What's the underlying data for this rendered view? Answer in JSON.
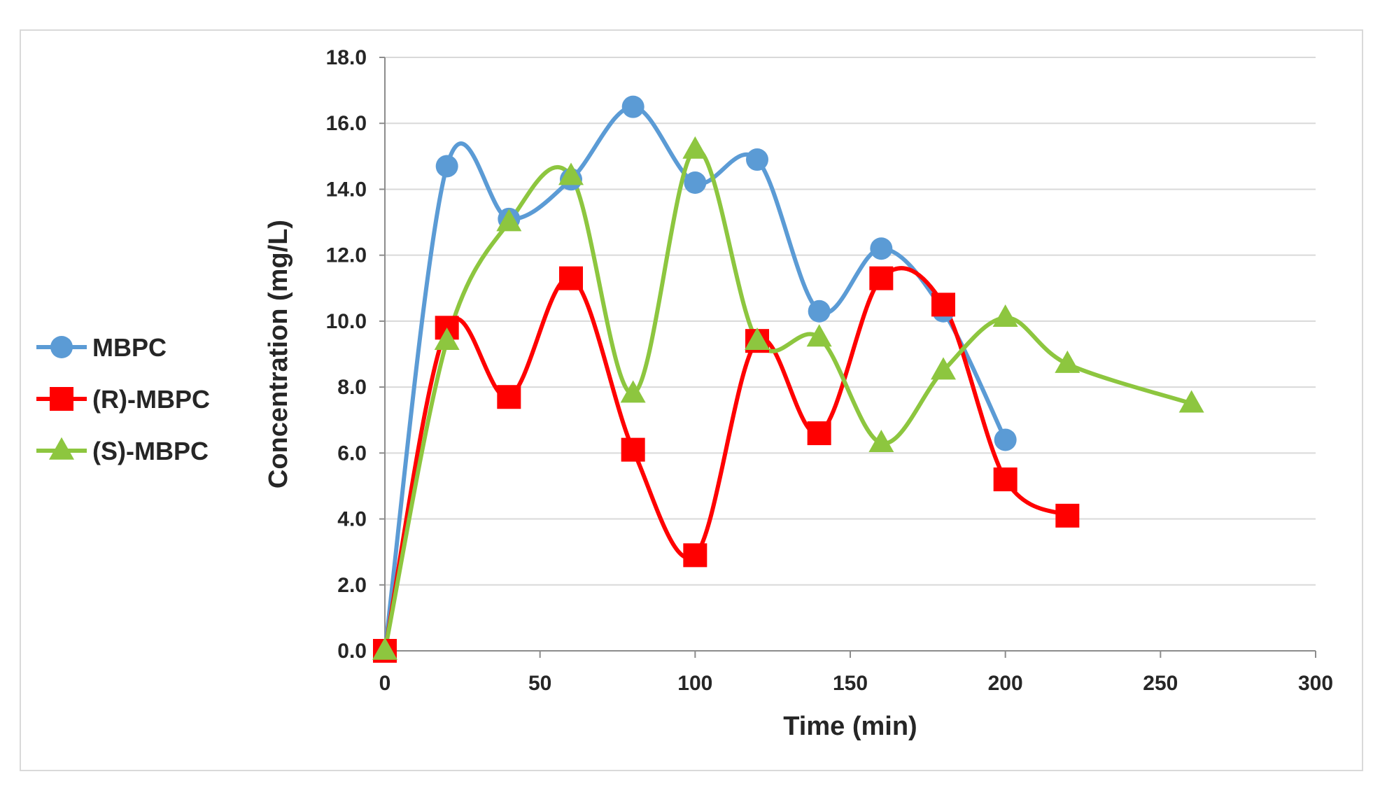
{
  "chart_data": {
    "type": "line",
    "title": "",
    "xlabel": "Time (min)",
    "ylabel": "Concentration (mg/L)",
    "xlim": [
      0,
      300
    ],
    "ylim": [
      0,
      18
    ],
    "xticks": [
      0,
      50,
      100,
      150,
      200,
      250,
      300
    ],
    "yticks": [
      0,
      2,
      4,
      6,
      8,
      10,
      12,
      14,
      16,
      18
    ],
    "xtick_labels": [
      "0",
      "50",
      "100",
      "150",
      "200",
      "250",
      "300"
    ],
    "ytick_labels": [
      "0.0",
      "2.0",
      "4.0",
      "6.0",
      "8.0",
      "10.0",
      "12.0",
      "14.0",
      "16.0",
      "18.0"
    ],
    "grid": "horizontal",
    "smooth": true,
    "legend_position": "left",
    "series": [
      {
        "name": "MBPC",
        "color": "#5b9bd5",
        "marker": "circle",
        "x": [
          0,
          20,
          40,
          60,
          80,
          100,
          120,
          140,
          160,
          180,
          200
        ],
        "y": [
          0.0,
          14.7,
          13.1,
          14.3,
          16.5,
          14.2,
          14.9,
          10.3,
          12.2,
          10.3,
          6.4
        ]
      },
      {
        "name": "(R)-MBPC",
        "color": "#ff0000",
        "marker": "square",
        "x": [
          0,
          20,
          40,
          60,
          80,
          100,
          120,
          140,
          160,
          180,
          200,
          220
        ],
        "y": [
          0.0,
          9.8,
          7.7,
          11.3,
          6.1,
          2.9,
          9.4,
          6.6,
          11.3,
          10.5,
          5.2,
          4.1
        ]
      },
      {
        "name": "(S)-MBPC",
        "color": "#8dc63f",
        "marker": "triangle",
        "x": [
          0,
          20,
          40,
          60,
          80,
          100,
          120,
          140,
          160,
          180,
          200,
          220,
          260
        ],
        "y": [
          0.0,
          9.4,
          13.0,
          14.4,
          7.8,
          15.2,
          9.4,
          9.5,
          6.3,
          8.5,
          10.1,
          8.7,
          7.5
        ]
      }
    ]
  }
}
